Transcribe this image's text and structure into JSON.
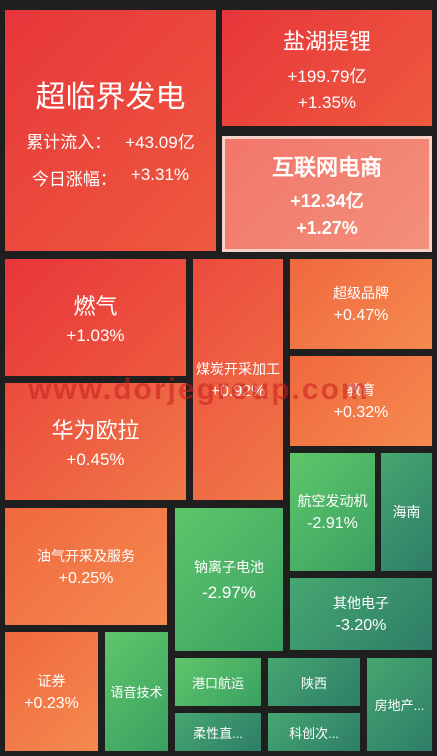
{
  "tiles": {
    "chaolinjie": {
      "name": "超临界发电",
      "inflow_label": "累计流入：",
      "inflow_value": "+43.09亿",
      "change_label": "今日涨幅：",
      "change_value": "+3.31%"
    },
    "yanhu": {
      "name": "盐湖提锂",
      "inflow": "+199.79亿",
      "change": "+1.35%"
    },
    "hulianwang": {
      "name": "互联网电商",
      "inflow": "+12.34亿",
      "change": "+1.27%"
    },
    "ranqi": {
      "name": "燃气",
      "change": "+1.03%"
    },
    "meitan": {
      "name": "煤炭开采加工",
      "change": "+0.92%"
    },
    "chaoji": {
      "name": "超级品牌",
      "change": "+0.47%"
    },
    "jiaoyu": {
      "name": "教育",
      "change": "+0.32%"
    },
    "huawei": {
      "name": "华为欧拉",
      "change": "+0.45%"
    },
    "hangkong": {
      "name": "航空发动机",
      "change": "-2.91%"
    },
    "hainan": {
      "name": "海南"
    },
    "youqi": {
      "name": "油气开采及服务",
      "change": "+0.25%"
    },
    "nalizi": {
      "name": "钠离子电池",
      "change": "-2.97%"
    },
    "qita": {
      "name": "其他电子",
      "change": "-3.20%"
    },
    "zhengquan": {
      "name": "证券",
      "change": "+0.23%"
    },
    "yuyin": {
      "name": "语音技术"
    },
    "gangkou": {
      "name": "港口航运"
    },
    "shanxi": {
      "name": "陕西"
    },
    "fangdichan": {
      "name": "房地产..."
    },
    "rouxing": {
      "name": "柔性直..."
    },
    "kechuang": {
      "name": "科创次..."
    }
  },
  "watermark": "www.dorjegroup.com",
  "colors": {
    "up_strong": "#e8363b",
    "up_mild": "#f58a4f",
    "down_mild": "#5fc66a",
    "down_strong": "#2e7d68",
    "background": "#1f1f1f"
  }
}
